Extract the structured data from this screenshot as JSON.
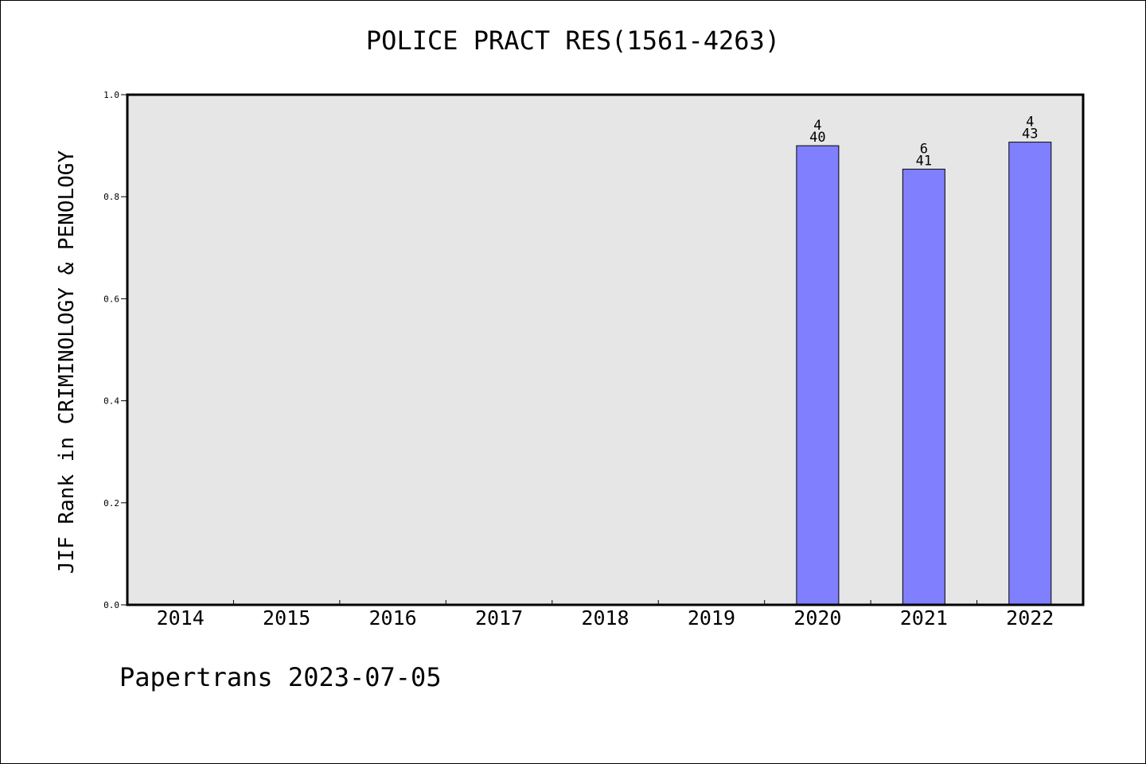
{
  "chart_data": {
    "type": "bar",
    "title": "POLICE PRACT RES(1561-4263)",
    "ylabel": "JIF Rank in CRIMINOLOGY & PENOLOGY",
    "xlabel": "",
    "categories": [
      "2014",
      "2015",
      "2016",
      "2017",
      "2018",
      "2019",
      "2020",
      "2021",
      "2022"
    ],
    "values": [
      null,
      null,
      null,
      null,
      null,
      null,
      0.9,
      0.854,
      0.907
    ],
    "bar_labels": [
      null,
      null,
      null,
      null,
      null,
      null,
      {
        "rank": "4",
        "total": "40"
      },
      {
        "rank": "6",
        "total": "41"
      },
      {
        "rank": "4",
        "total": "43"
      }
    ],
    "ylim": [
      0,
      1.0
    ],
    "yticks": [
      "0.0",
      "0.2",
      "0.4",
      "0.6",
      "0.8",
      "1.0"
    ],
    "grid": false,
    "bar_color": "#8080ff",
    "plot_background": "#e6e6e6"
  },
  "footer": {
    "text": "Papertrans 2023-07-05"
  }
}
